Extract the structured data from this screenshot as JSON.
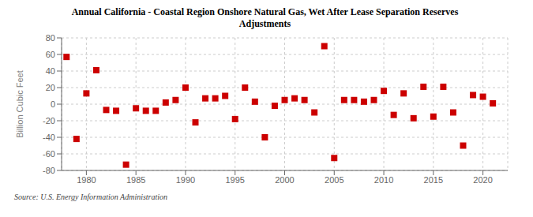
{
  "chart_data": {
    "type": "scatter",
    "title": "Annual California - Coastal Region Onshore Natural Gas, Wet After Lease Separation Reserves\nAdjustments",
    "ylabel": "Billion Cubic Feet",
    "source": "Source: U.S. Energy Information Administration",
    "color": "#cc0000",
    "marker": "square",
    "grid": true,
    "xlim": [
      1977.5,
      2022.5
    ],
    "ylim": [
      -80,
      80
    ],
    "xticks": [
      1980,
      1985,
      1990,
      1995,
      2000,
      2005,
      2010,
      2015,
      2020
    ],
    "yticks": [
      -80,
      -60,
      -40,
      -20,
      0,
      20,
      40,
      60,
      80
    ],
    "x": [
      1978,
      1979,
      1980,
      1981,
      1982,
      1983,
      1984,
      1985,
      1986,
      1987,
      1988,
      1989,
      1990,
      1991,
      1992,
      1993,
      1994,
      1995,
      1996,
      1997,
      1998,
      1999,
      2000,
      2001,
      2002,
      2003,
      2004,
      2005,
      2006,
      2007,
      2008,
      2009,
      2010,
      2011,
      2012,
      2013,
      2014,
      2015,
      2016,
      2017,
      2018,
      2019,
      2020,
      2021
    ],
    "values": [
      57,
      -42,
      13,
      41,
      -7,
      -8,
      -73,
      -5,
      -8,
      -8,
      2,
      5,
      20,
      -22,
      7,
      7,
      10,
      -18,
      20,
      3,
      -40,
      -2,
      5,
      7,
      5,
      -10,
      70,
      -65,
      5,
      5,
      3,
      5,
      16,
      -13,
      13,
      -17,
      21,
      -15,
      21,
      -10,
      -50,
      11,
      9,
      1
    ]
  }
}
